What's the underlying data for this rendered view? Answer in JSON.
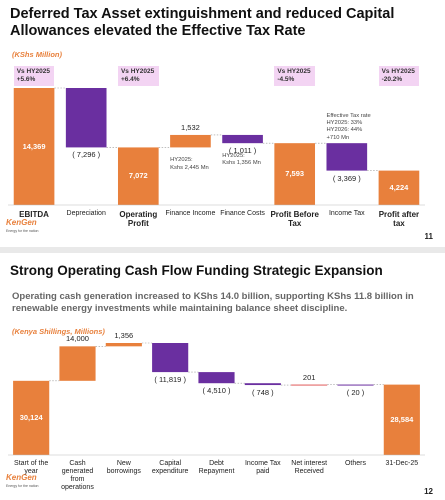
{
  "chart_data": [
    {
      "type": "waterfall",
      "title": "Deferred Tax Asset extinguishment and reduced Capital Allowances elevated the Effective Tax Rate",
      "unit_label": "(KShs Million)",
      "categories": [
        "EBITDA",
        "Depreciation",
        "Operating Profit",
        "Finance Income",
        "Finance Costs",
        "Profit Before Tax",
        "Income Tax",
        "Profit after tax"
      ],
      "measure": [
        "total",
        "relative",
        "total",
        "relative",
        "relative",
        "total",
        "relative",
        "total"
      ],
      "values": [
        14369,
        -7296,
        7072,
        1532,
        -1011,
        7593,
        -3369,
        4224
      ],
      "value_labels": [
        "14,369",
        "( 7,296 )",
        "7,072",
        "1,532",
        "( 1,011 )",
        "7,593",
        "( 3,369 )",
        "4,224"
      ],
      "colors": [
        "#e8803c",
        "#6a2fa0",
        "#e8803c",
        "#e8803c",
        "#6a2fa0",
        "#e8803c",
        "#6a2fa0",
        "#e8803c"
      ],
      "bold_totals": true,
      "callouts": [
        "Vs HY2025\n+5.6%",
        null,
        "Vs HY2025\n+6.4%",
        null,
        null,
        "Vs HY2025\n-4.5%",
        null,
        "Vs HY2025\n-20.2%"
      ],
      "notes": [
        null,
        null,
        null,
        "HY2025:\nKshs 2,445 Mn",
        "HY2025:\nKshs 1,356 Mn",
        null,
        "Effective Tax rate\nHY2025: 33%\nHY2026: 44%\n+710 Mn",
        null
      ],
      "logo": "KenGen",
      "logo_tagline": "Energy for the nation",
      "page_number": "11"
    },
    {
      "type": "waterfall",
      "title": "Strong Operating Cash Flow Funding Strategic Expansion",
      "subtitle": "Operating cash generation increased to KShs 14.0 billion, supporting KShs 11.8 billion in renewable energy investments while maintaining balance sheet discipline.",
      "unit_label": "(Kenya Shillings, Millions)",
      "categories": [
        "Start of the year",
        "Cash generated from operations",
        "New borrowings",
        "Capital expenditure",
        "Debt Repayment",
        "Income Tax paid",
        "Net interest Received",
        "Others",
        "31-Dec-25"
      ],
      "measure": [
        "total",
        "relative",
        "relative",
        "relative",
        "relative",
        "relative",
        "relative",
        "relative",
        "total"
      ],
      "values": [
        30124,
        14000,
        1356,
        -11819,
        -4510,
        -748,
        201,
        -20,
        28584
      ],
      "value_labels": [
        "30,124",
        "14,000",
        "1,356",
        "( 11,819 )",
        "( 4,510 )",
        "( 748 )",
        "201",
        "( 20 )",
        "28,584"
      ],
      "colors": [
        "#e8803c",
        "#e8803c",
        "#e8803c",
        "#6a2fa0",
        "#6a2fa0",
        "#6a2fa0",
        "#e05a5a",
        "#6a2fa0",
        "#e8803c"
      ],
      "bold_totals": false,
      "logo": "KenGen",
      "logo_tagline": "Energy for the nation",
      "page_number": "12"
    }
  ]
}
